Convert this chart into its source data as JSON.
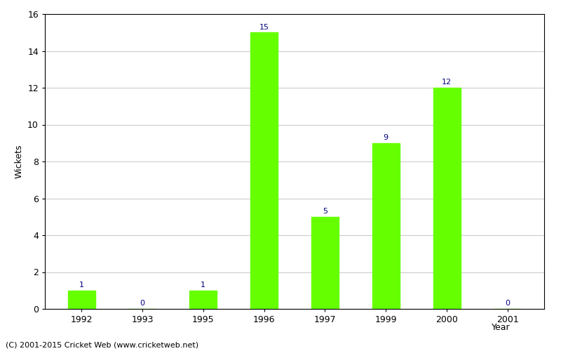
{
  "categories": [
    "1992",
    "1993",
    "1995",
    "1996",
    "1997",
    "1999",
    "2000",
    "2001"
  ],
  "values": [
    1,
    0,
    1,
    15,
    5,
    9,
    12,
    0
  ],
  "bar_color": "#66ff00",
  "label_color": "#000080",
  "xlabel": "Year",
  "ylabel": "Wickets",
  "ylim": [
    0,
    16
  ],
  "yticks": [
    0,
    2,
    4,
    6,
    8,
    10,
    12,
    14,
    16
  ],
  "footer": "(C) 2001-2015 Cricket Web (www.cricketweb.net)",
  "label_fontsize": 8,
  "axis_fontsize": 9,
  "footer_fontsize": 8,
  "bar_width": 0.45
}
